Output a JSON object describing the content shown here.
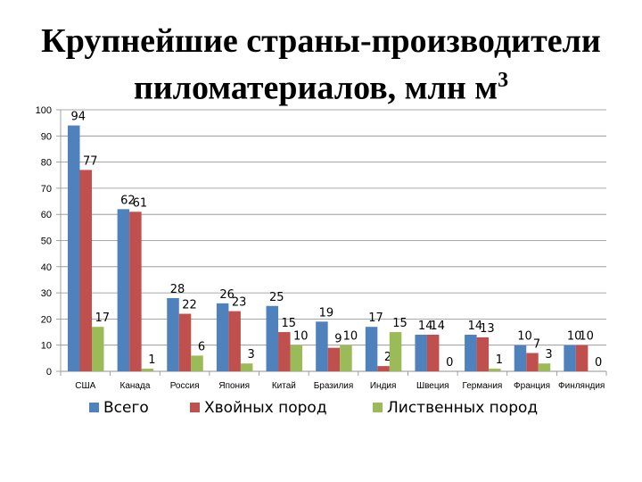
{
  "chart_data": {
    "type": "bar",
    "title_line1": "Крупнейшие страны-производители",
    "title_line2": "пиломатериалов, млн м",
    "title_sup": "3",
    "categories": [
      "США",
      "Канада",
      "Россия",
      "Япония",
      "Китай",
      "Бразилия",
      "Индия",
      "Швеция",
      "Германия",
      "Франция",
      "Финляндия"
    ],
    "series": [
      {
        "name": "Всего",
        "color": "#4f81bd",
        "values": [
          94,
          62,
          28,
          26,
          25,
          19,
          17,
          14,
          14,
          10,
          10
        ]
      },
      {
        "name": "Хвойных пород",
        "color": "#c0504d",
        "values": [
          77,
          61,
          22,
          23,
          15,
          9,
          2,
          14,
          13,
          7,
          10
        ]
      },
      {
        "name": "Лиственных пород",
        "color": "#9bbb59",
        "values": [
          17,
          1,
          6,
          3,
          10,
          10,
          15,
          0,
          1,
          3,
          0
        ]
      }
    ],
    "ylim": [
      0,
      100
    ],
    "yticks": [
      0,
      10,
      20,
      30,
      40,
      50,
      60,
      70,
      80,
      90,
      100
    ],
    "grid": true,
    "legend_position": "bottom"
  }
}
